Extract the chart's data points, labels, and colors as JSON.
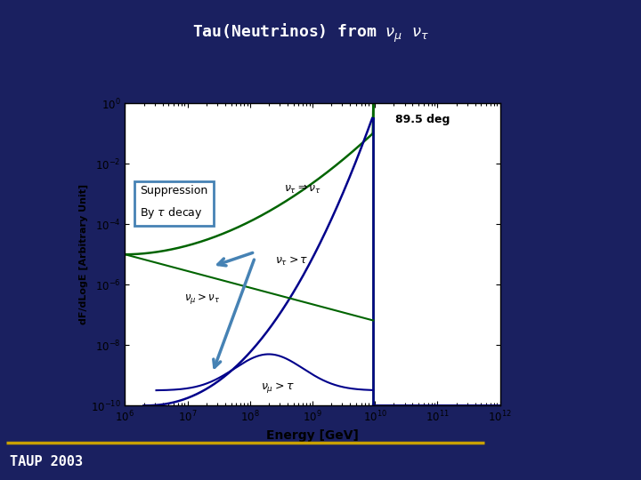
{
  "title": "Tau(Neutrinos) from $\\nu_\\mu$ $\\nu_\\tau$",
  "xlabel": "Energy [GeV]",
  "ylabel": "dF/dLogE [Arbitrary Unit]",
  "background_color": "#1a2060",
  "plot_bg_color": "#ffffff",
  "annotation_89deg": "89.5 deg",
  "color_green": "#006400",
  "color_blue": "#00008B",
  "color_arrow": "#4682B4",
  "taup_text": "TAUP 2003",
  "gold_line_color": "#c8a000"
}
